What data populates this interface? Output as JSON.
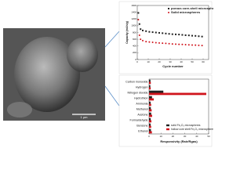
{
  "image": {
    "scale_bar": "1 μm"
  },
  "chart_data": [
    {
      "type": "scatter",
      "y_label": "Capacity (mAh/g)",
      "x_label": "Cycle number",
      "x": [
        1,
        2,
        3,
        5,
        8,
        11,
        14,
        17,
        20,
        23,
        26,
        29,
        32,
        35,
        38,
        41,
        44,
        47,
        50,
        53,
        56,
        59
      ],
      "series": [
        {
          "name": "porous core-shell microspheres",
          "color": "#222222",
          "values": [
            1380,
            1050,
            900,
            860,
            840,
            820,
            810,
            800,
            790,
            780,
            770,
            760,
            750,
            745,
            740,
            730,
            720,
            715,
            705,
            700,
            690,
            680
          ]
        },
        {
          "name": "Solid microspheres",
          "color": "#d0141c",
          "values": [
            1180,
            720,
            600,
            560,
            530,
            520,
            510,
            500,
            490,
            485,
            478,
            470,
            462,
            455,
            450,
            445,
            440,
            436,
            430,
            425,
            420,
            415
          ]
        }
      ],
      "xlim": [
        0,
        65
      ],
      "xticks": [
        0,
        10,
        20,
        30,
        40,
        50,
        60
      ],
      "ylim": [
        0,
        1600
      ],
      "yticks": [
        0,
        200,
        400,
        600,
        800,
        1000,
        1200,
        1400,
        1600
      ],
      "legend": "upper right"
    },
    {
      "type": "bar",
      "orientation": "horizontal",
      "x_label": "Responsivity (Rair/Rgas)",
      "categories": [
        "Carbon monoxide",
        "Hydrogen",
        "Nitrogen dioxide",
        "Hydrothion",
        "Ammonia",
        "Methanol",
        "Acetone",
        "Formaldehyde",
        "Benzene",
        "Ethanol"
      ],
      "series": [
        {
          "name": "solid Fe₂O₃ microspheres",
          "color": "#222222",
          "values": [
            1.2,
            1.1,
            12,
            2.5,
            1.3,
            1.5,
            1.8,
            1.4,
            1.3,
            1.6
          ]
        },
        {
          "name": "hollow core shell Fe₂O₃ microspheres",
          "color": "#d0141c",
          "values": [
            1.5,
            1.4,
            48,
            4,
            1.8,
            2.2,
            2.6,
            2,
            1.8,
            2.4
          ]
        }
      ],
      "xlim": [
        0,
        50
      ],
      "xticks": [
        0,
        10,
        20,
        30,
        40,
        50
      ],
      "legend": "lower right"
    }
  ]
}
